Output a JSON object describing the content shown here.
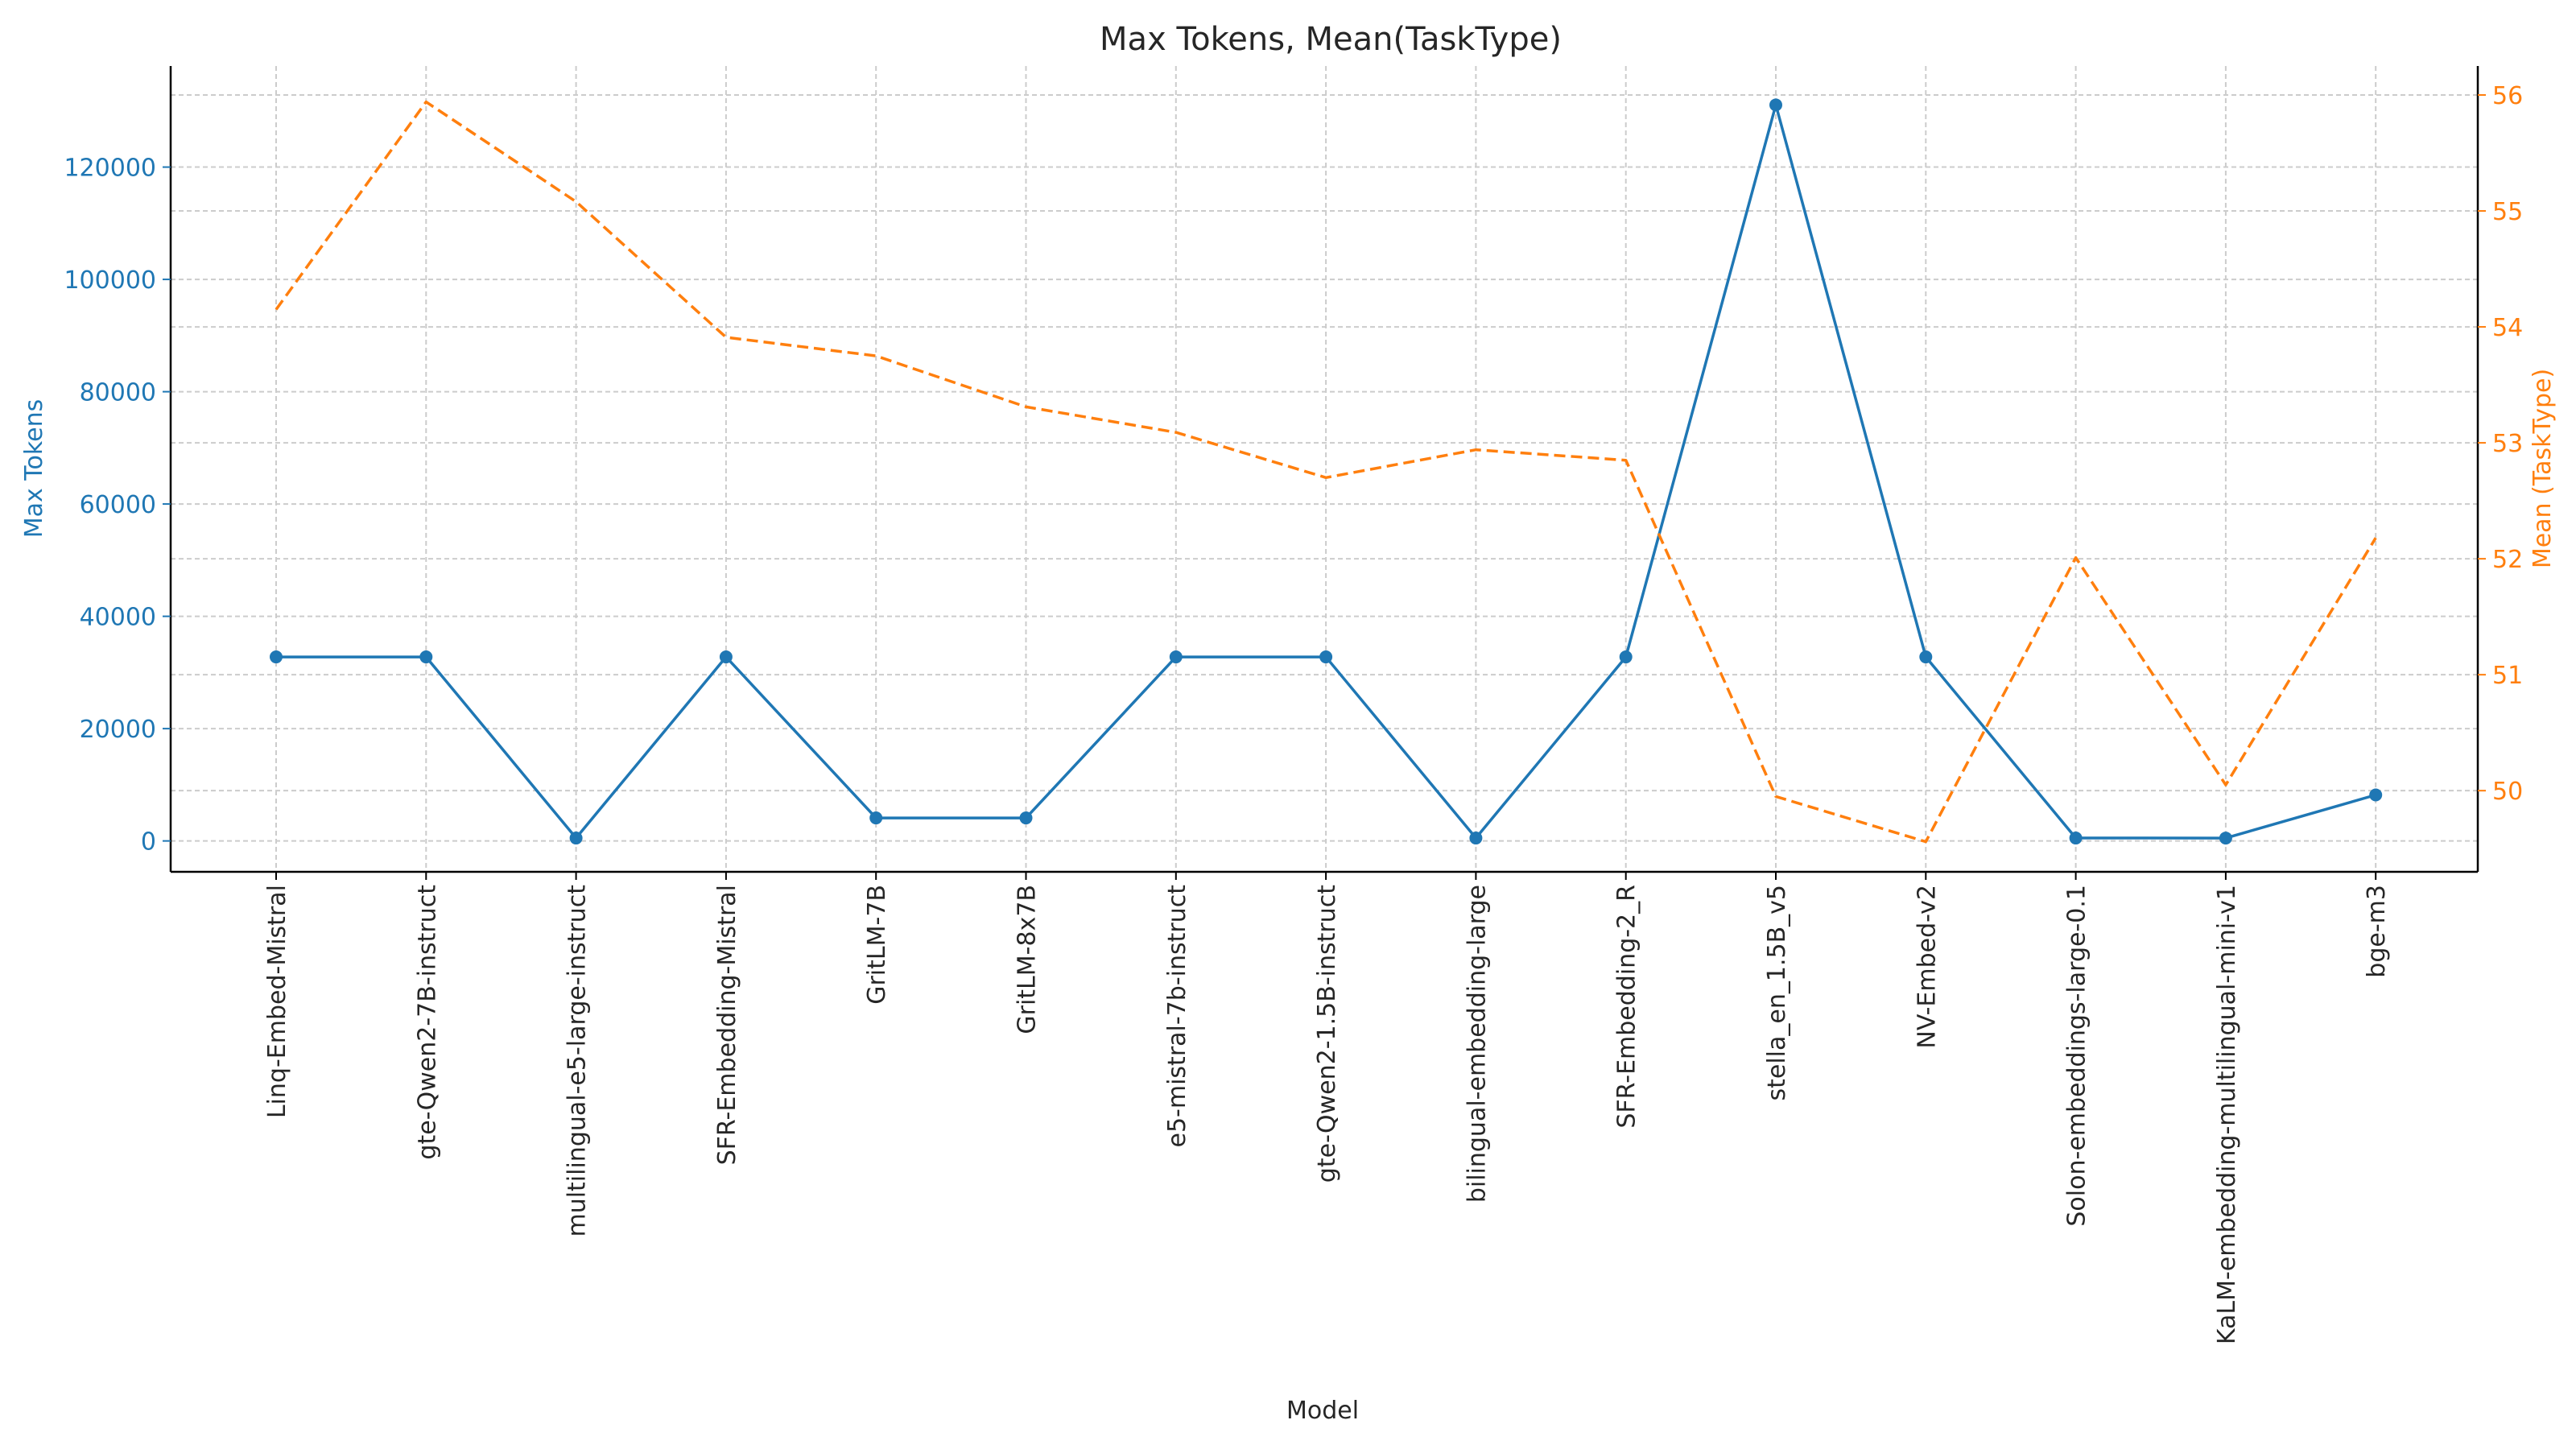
{
  "chart_data": {
    "type": "line",
    "title": "Max Tokens, Mean(TaskType)",
    "xlabel": "Model",
    "ylabel_left": "Max Tokens",
    "ylabel_right": "Mean (TaskType)",
    "categories": [
      "Linq-Embed-Mistral",
      "gte-Qwen2-7B-instruct",
      "multilingual-e5-large-instruct",
      "SFR-Embedding-Mistral",
      "GritLM-7B",
      "GritLM-8x7B",
      "e5-mistral-7b-instruct",
      "gte-Qwen2-1.5B-instruct",
      "bilingual-embedding-large",
      "SFR-Embedding-2_R",
      "stella_en_1.5B_v5",
      "NV-Embed-v2",
      "Solon-embeddings-large-0.1",
      "KaLM-embedding-multilingual-mini-v1",
      "bge-m3"
    ],
    "series": [
      {
        "name": "Max Tokens",
        "axis": "left",
        "style": "solid-with-markers",
        "color": "#1f77b4",
        "values": [
          32768,
          32768,
          514,
          32768,
          4096,
          4096,
          32768,
          32768,
          514,
          32768,
          131072,
          32768,
          514,
          512,
          8192
        ]
      },
      {
        "name": "Mean (TaskType)",
        "axis": "right",
        "style": "dashed",
        "color": "#ff7f0e",
        "values": [
          54.15,
          55.94,
          55.08,
          53.91,
          53.75,
          53.31,
          53.09,
          52.7,
          52.94,
          52.85,
          49.95,
          49.56,
          52.01,
          50.05,
          52.18
        ]
      }
    ],
    "ylim_left": [
      -5500,
      138000
    ],
    "yticks_left": [
      0,
      20000,
      40000,
      60000,
      80000,
      100000,
      120000
    ],
    "ylim_right": [
      49.3,
      56.25
    ],
    "yticks_right": [
      50,
      51,
      52,
      53,
      54,
      55,
      56
    ],
    "grid": true,
    "left_axis_color": "#1f77b4",
    "right_axis_color": "#ff7f0e"
  }
}
